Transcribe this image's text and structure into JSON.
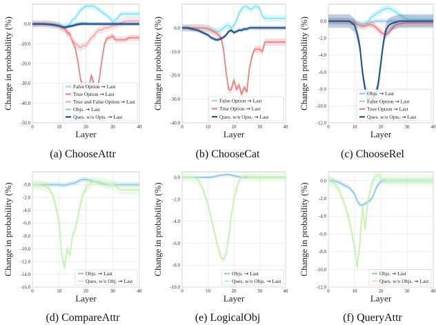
{
  "colors": {
    "cyan": "#80e6f2",
    "red": "#ef7f7f",
    "pink": "#f2aaa8",
    "lightblue": "#8ec8ec",
    "navy": "#1f4e8c",
    "green": "#c6f2b0",
    "gridline": "#e3e3e3"
  },
  "chart_data": [
    {
      "type": "line",
      "caption": "(a) ChooseAttr",
      "xlabel": "Layer",
      "ylabel": "Change in probability (%)",
      "xlim": [
        0,
        40
      ],
      "ylim": [
        -50,
        10
      ],
      "yticks": [
        0,
        -10,
        -20,
        -30,
        -40,
        -50
      ],
      "ytick_labels": [
        "0.0",
        "-10.0",
        "-20.0",
        "-30.0",
        "-40.0",
        "-50.0"
      ],
      "xticks": [
        0,
        10,
        20,
        30,
        40
      ],
      "legend_position": "bottom-right",
      "x": [
        0,
        2,
        4,
        6,
        8,
        10,
        11,
        12,
        13,
        14,
        15,
        16,
        17,
        18,
        19,
        20,
        21,
        22,
        23,
        24,
        25,
        26,
        27,
        28,
        29,
        30,
        31,
        32,
        33,
        34,
        35,
        36,
        37,
        38,
        39,
        40
      ],
      "series": [
        {
          "name": "False Option ⇝ Last",
          "color": "cyan",
          "band": 1.5,
          "values": [
            0,
            0,
            0,
            0,
            -0.3,
            -0.8,
            -1.5,
            -1.5,
            -1,
            0,
            2,
            3,
            5,
            7,
            8,
            9,
            9,
            9,
            9,
            8,
            7,
            6,
            5,
            4,
            3,
            1,
            2,
            3,
            5,
            5,
            5,
            5,
            5,
            5,
            5,
            5
          ]
        },
        {
          "name": "True Option ⇝ Last",
          "color": "red",
          "band": 1.5,
          "values": [
            0,
            0,
            0,
            0,
            -0.5,
            -1,
            -2,
            -2,
            -4,
            -5,
            -9,
            -12,
            -19,
            -28,
            -32,
            -30,
            -33,
            -26,
            -30,
            -34,
            -28,
            -18,
            -10,
            -7,
            -7,
            -6,
            -8,
            -8,
            -8,
            -8,
            -8,
            -7,
            -7,
            -7,
            -7,
            -7
          ]
        },
        {
          "name": "True and False Option ⇝ Last",
          "color": "pink",
          "band": 2,
          "values": [
            0,
            0,
            0,
            0,
            -0.5,
            -1,
            -2,
            -3,
            -5,
            -6,
            -8,
            -10,
            -11,
            -12,
            -11,
            -11,
            -9,
            -7,
            -6,
            -4,
            -3,
            -3,
            -2,
            -2,
            -1.5,
            -1,
            -1,
            0,
            0.5,
            1,
            1.5,
            1.5,
            1.5,
            1.5,
            1.5,
            1.5
          ]
        },
        {
          "name": "Objs. ⇝ Last",
          "color": "lightblue",
          "band": 1,
          "values": [
            0,
            0,
            0,
            0,
            0,
            -0.5,
            -1,
            -1.5,
            -1.5,
            -1,
            -0.8,
            0,
            0.3,
            0.5,
            0.5,
            0.3,
            0.2,
            0,
            0,
            0,
            0,
            0,
            0,
            0,
            0,
            0,
            0,
            0,
            0,
            0,
            0,
            0,
            0,
            0,
            0,
            0
          ]
        },
        {
          "name": "Ques. w/o Opts. ⇝ Last",
          "color": "navy",
          "band": 0.8,
          "values": [
            0,
            0,
            0,
            -0.2,
            -0.5,
            -1,
            -1.5,
            -1.8,
            -1.5,
            -1.2,
            -1,
            -0.6,
            -0.3,
            -0.1,
            0,
            0,
            0,
            0,
            0,
            0,
            0,
            0,
            0,
            0,
            0,
            0,
            0,
            0,
            0,
            0,
            0,
            0,
            0,
            0,
            0,
            0
          ]
        }
      ]
    },
    {
      "type": "line",
      "caption": "(b) ChooseCat",
      "xlabel": "Layer",
      "ylabel": "Change in probability (%)",
      "xlim": [
        0,
        40
      ],
      "ylim": [
        -40,
        10
      ],
      "yticks": [
        0,
        -10,
        -20,
        -30,
        -40
      ],
      "ytick_labels": [
        "0.0",
        "-10.0",
        "-20.0",
        "-30.0",
        "-40.0"
      ],
      "xticks": [
        0,
        10,
        20,
        30,
        40
      ],
      "legend_position": "bottom-right",
      "x": [
        0,
        2,
        4,
        6,
        8,
        10,
        11,
        12,
        13,
        14,
        15,
        16,
        17,
        18,
        19,
        20,
        21,
        22,
        23,
        24,
        25,
        26,
        27,
        28,
        29,
        30,
        31,
        32,
        33,
        34,
        35,
        36,
        37,
        38,
        39,
        40
      ],
      "series": [
        {
          "name": "False Option ⇝ Last",
          "color": "cyan",
          "band": 1.5,
          "values": [
            0,
            0,
            0,
            0,
            0,
            0,
            -0.5,
            -1,
            -1.5,
            -1.5,
            -1,
            0,
            1,
            1,
            0,
            1,
            3,
            6,
            8,
            9,
            9,
            8,
            8,
            9,
            9,
            8,
            5,
            4,
            4,
            4,
            4,
            4,
            4,
            4,
            4,
            4
          ]
        },
        {
          "name": "True Option ⇝ Last",
          "color": "red",
          "band": 1.5,
          "values": [
            0,
            0,
            0,
            0,
            0,
            -0.5,
            -1,
            -1.5,
            -2,
            -3,
            -4,
            -9,
            -19,
            -26,
            -26,
            -22,
            -26,
            -24,
            -28,
            -25,
            -27,
            -17,
            -12,
            -9,
            -9,
            -9,
            -10,
            -6,
            -6,
            -6,
            -6,
            -6,
            -6,
            -6,
            -6,
            -6
          ]
        },
        {
          "name": "Ques. w/o Opts. ⇝ Last",
          "color": "navy",
          "band": 0.8,
          "values": [
            0,
            0,
            -0.5,
            -1,
            -2,
            -3,
            -4,
            -4.5,
            -5,
            -5,
            -4.5,
            -4,
            -3,
            -1.5,
            -1,
            -2,
            -1.5,
            -1,
            -1,
            -0.5,
            -0.5,
            0,
            0,
            0,
            0,
            0,
            0,
            0,
            0,
            0,
            0,
            0,
            0,
            0,
            0,
            0
          ]
        }
      ]
    },
    {
      "type": "line",
      "caption": "(c) ChooseRel",
      "xlabel": "Layer",
      "ylabel": "Change in probability (%)",
      "xlim": [
        0,
        40
      ],
      "ylim": [
        -12,
        2
      ],
      "yticks": [
        0,
        -2,
        -4,
        -6,
        -8,
        -10,
        -12
      ],
      "ytick_labels": [
        "0.0",
        "-2.0",
        "-4.0",
        "-6.0",
        "-8.0",
        "-10.0",
        "-12.0"
      ],
      "xticks": [
        0,
        10,
        20,
        30,
        40
      ],
      "legend_position": "bottom-right",
      "x": [
        0,
        2,
        4,
        6,
        8,
        10,
        11,
        12,
        13,
        14,
        15,
        16,
        17,
        18,
        19,
        20,
        21,
        22,
        23,
        24,
        25,
        26,
        27,
        28,
        29,
        30,
        31,
        32,
        33,
        34,
        35,
        36,
        37,
        38,
        39,
        40
      ],
      "series": [
        {
          "name": "Objs. ⇝ Last",
          "color": "lightblue",
          "band": 0.3,
          "values": [
            0,
            0,
            0,
            0,
            0,
            -0.1,
            -0.2,
            -0.3,
            -0.4,
            -0.4,
            -0.3,
            -0.2,
            -0.1,
            0,
            0,
            0,
            0,
            0,
            0,
            0,
            0,
            0,
            0,
            0,
            0,
            0,
            0,
            0,
            0,
            0,
            0,
            0,
            0,
            0,
            0,
            0
          ]
        },
        {
          "name": "False Option ⇝ Last",
          "color": "cyan",
          "band": 0.4,
          "values": [
            0,
            0,
            0,
            0,
            0,
            -0.2,
            -0.4,
            -0.6,
            -0.5,
            -0.3,
            -0.1,
            0.3,
            0.6,
            0.8,
            1,
            1.2,
            1.4,
            1.5,
            1.5,
            1.4,
            1.2,
            1,
            0.8,
            0.6,
            0.4,
            0.3,
            0.2,
            0.2,
            0.2,
            0.2,
            0.2,
            0.2,
            0.2,
            0.2,
            0.2,
            0.2
          ]
        },
        {
          "name": "True Option ⇝ Last",
          "color": "red",
          "band": 0.4,
          "values": [
            0,
            0,
            0,
            0,
            -0.1,
            -0.2,
            -0.4,
            -0.5,
            -0.6,
            -0.6,
            -0.5,
            -0.4,
            -0.5,
            -0.7,
            -1,
            -1.3,
            -1.5,
            -1.6,
            -1.4,
            -1,
            -0.6,
            -0.4,
            -0.3,
            -0.3,
            -0.2,
            -0.2,
            -0.2,
            -0.2,
            -0.2,
            -0.2,
            -0.2,
            -0.2,
            -0.2,
            -0.2,
            -0.2,
            -0.2
          ]
        },
        {
          "name": "Ques. w/o Opts. ⇝ Last",
          "color": "navy",
          "band": 0.8,
          "values": [
            0,
            0,
            0,
            0,
            0,
            -0.5,
            -1.5,
            -3,
            -6,
            -8,
            -9.2,
            -9,
            -9.2,
            -8.8,
            -7.5,
            -5,
            -2.5,
            -1,
            -0.5,
            -0.3,
            -0.2,
            -0.1,
            0,
            0,
            0,
            0,
            0,
            0,
            0,
            0,
            0,
            0,
            0,
            0,
            0,
            0
          ]
        }
      ]
    },
    {
      "type": "line",
      "caption": "(d) CompareAttr",
      "xlabel": "Layer",
      "ylabel": "Change in probability (%)",
      "xlim": [
        0,
        40
      ],
      "ylim": [
        -16,
        2
      ],
      "yticks": [
        0,
        -2,
        -4,
        -6,
        -8,
        -10,
        -12,
        -14,
        -16
      ],
      "ytick_labels": [
        "0.0",
        "-2.0",
        "-4.0",
        "-6.0",
        "-8.0",
        "-10.0",
        "-12.0",
        "-14.0",
        "-16.0"
      ],
      "xticks": [
        0,
        10,
        20,
        30,
        40
      ],
      "legend_position": "bottom-right",
      "x": [
        0,
        2,
        4,
        6,
        8,
        10,
        11,
        12,
        13,
        14,
        15,
        16,
        17,
        18,
        19,
        20,
        21,
        22,
        23,
        24,
        25,
        26,
        27,
        28,
        29,
        30,
        31,
        32,
        33,
        34,
        35,
        36,
        37,
        38,
        39,
        40
      ],
      "series": [
        {
          "name": "Objs. ⇝ Last",
          "color": "lightblue",
          "band": 0.4,
          "values": [
            0,
            0,
            0,
            0,
            0,
            0,
            -0.1,
            -0.1,
            0,
            0.1,
            0.2,
            0.3,
            0.5,
            0.7,
            0.8,
            0.8,
            0.7,
            0.6,
            0.5,
            0.4,
            0.3,
            0.2,
            0.1,
            0,
            0,
            0,
            0,
            0,
            0,
            0,
            0,
            0,
            0,
            0,
            0,
            0
          ]
        },
        {
          "name": "Ques. w/o Obj. ⇝ Last",
          "color": "green",
          "band": 0.8,
          "values": [
            0,
            0,
            -0.2,
            -0.5,
            -2,
            -6,
            -11,
            -13,
            -10,
            -11,
            -8,
            -7,
            -5,
            -3,
            -1.5,
            -0.5,
            0,
            0.3,
            0.5,
            0.5,
            0.4,
            0.3,
            0.2,
            0.1,
            0,
            0,
            -0.2,
            -0.5,
            -0.8,
            -0.8,
            -0.8,
            -0.8,
            -0.8,
            -0.8,
            -0.8,
            -0.8
          ]
        }
      ]
    },
    {
      "type": "line",
      "caption": "(e) LogicalObj",
      "xlabel": "Layer",
      "ylabel": "Change in probability (%)",
      "xlim": [
        0,
        40
      ],
      "ylim": [
        -10,
        0.5
      ],
      "yticks": [
        0,
        -2,
        -4,
        -6,
        -8,
        -10
      ],
      "ytick_labels": [
        "0.0",
        "-2.0",
        "-4.0",
        "-6.0",
        "-8.0",
        "-10.0"
      ],
      "xticks": [
        0,
        10,
        20,
        30,
        40
      ],
      "legend_position": "bottom-right",
      "x": [
        0,
        2,
        4,
        6,
        8,
        10,
        11,
        12,
        13,
        14,
        15,
        16,
        17,
        18,
        19,
        20,
        21,
        22,
        23,
        24,
        25,
        26,
        27,
        28,
        29,
        30,
        31,
        32,
        33,
        34,
        35,
        36,
        37,
        38,
        39,
        40
      ],
      "series": [
        {
          "name": "Objs. ⇝ Last",
          "color": "lightblue",
          "band": 0.15,
          "values": [
            0,
            0,
            0,
            0,
            0,
            0,
            0,
            0.05,
            0.1,
            0.15,
            0.2,
            0.2,
            0.25,
            0.25,
            0.2,
            0.15,
            0.1,
            0.05,
            0,
            0,
            0,
            0,
            0,
            0,
            0,
            0,
            0,
            0,
            0,
            0,
            0,
            0,
            0,
            0,
            0,
            0
          ]
        },
        {
          "name": "Ques. w/o Objs. ⇝ Last",
          "color": "green",
          "band": 0.4,
          "values": [
            0,
            0,
            0,
            -0.2,
            -1,
            -2.5,
            -3.5,
            -4.5,
            -5.5,
            -6.5,
            -7.3,
            -7.5,
            -7,
            -5.5,
            -3.5,
            -2,
            -1,
            -0.3,
            0,
            0.1,
            0.1,
            0,
            0,
            0,
            0,
            0,
            0,
            0,
            0,
            0,
            0,
            0,
            0,
            0,
            0,
            0
          ]
        }
      ]
    },
    {
      "type": "line",
      "caption": "(f) QueryAttr",
      "xlabel": "Layer",
      "ylabel": "Change in probability (%)",
      "xlim": [
        0,
        40
      ],
      "ylim": [
        -12,
        1
      ],
      "yticks": [
        0,
        -2,
        -4,
        -6,
        -8,
        -10,
        -12
      ],
      "ytick_labels": [
        "0.0",
        "-2.0",
        "-4.0",
        "-6.0",
        "-8.0",
        "-10.0",
        "-12.0"
      ],
      "xticks": [
        0,
        10,
        20,
        30,
        40
      ],
      "legend_position": "bottom-right",
      "x": [
        0,
        2,
        4,
        6,
        8,
        10,
        11,
        12,
        13,
        14,
        15,
        16,
        17,
        18,
        19,
        20,
        21,
        22,
        23,
        24,
        25,
        26,
        27,
        28,
        29,
        30,
        31,
        32,
        33,
        34,
        35,
        36,
        37,
        38,
        39,
        40
      ],
      "series": [
        {
          "name": "Objs. ⇝ Last",
          "color": "lightblue",
          "band": 0.3,
          "values": [
            0,
            0,
            -0.2,
            -0.5,
            -0.8,
            -1.5,
            -2.3,
            -2.7,
            -2.8,
            -2.6,
            -2.4,
            -2.2,
            -1.8,
            -1,
            -0.4,
            -0.1,
            0,
            0,
            0,
            0,
            0,
            0,
            0,
            0,
            0,
            0,
            0,
            0,
            0,
            0,
            0,
            0,
            0,
            0,
            0,
            0
          ]
        },
        {
          "name": "Ques. w/o Objs. ⇝ Last",
          "color": "green",
          "band": 0.6,
          "values": [
            0,
            -0.2,
            -1,
            -2.5,
            -4.5,
            -7.5,
            -9.8,
            -7,
            -3,
            -5.5,
            -2.5,
            -1,
            0,
            0.5,
            0.6,
            0.3,
            0.2,
            0,
            0,
            0,
            0,
            0,
            0,
            0,
            0,
            0,
            0,
            0,
            0,
            0,
            0,
            0,
            0,
            0,
            0,
            0
          ]
        }
      ]
    }
  ]
}
